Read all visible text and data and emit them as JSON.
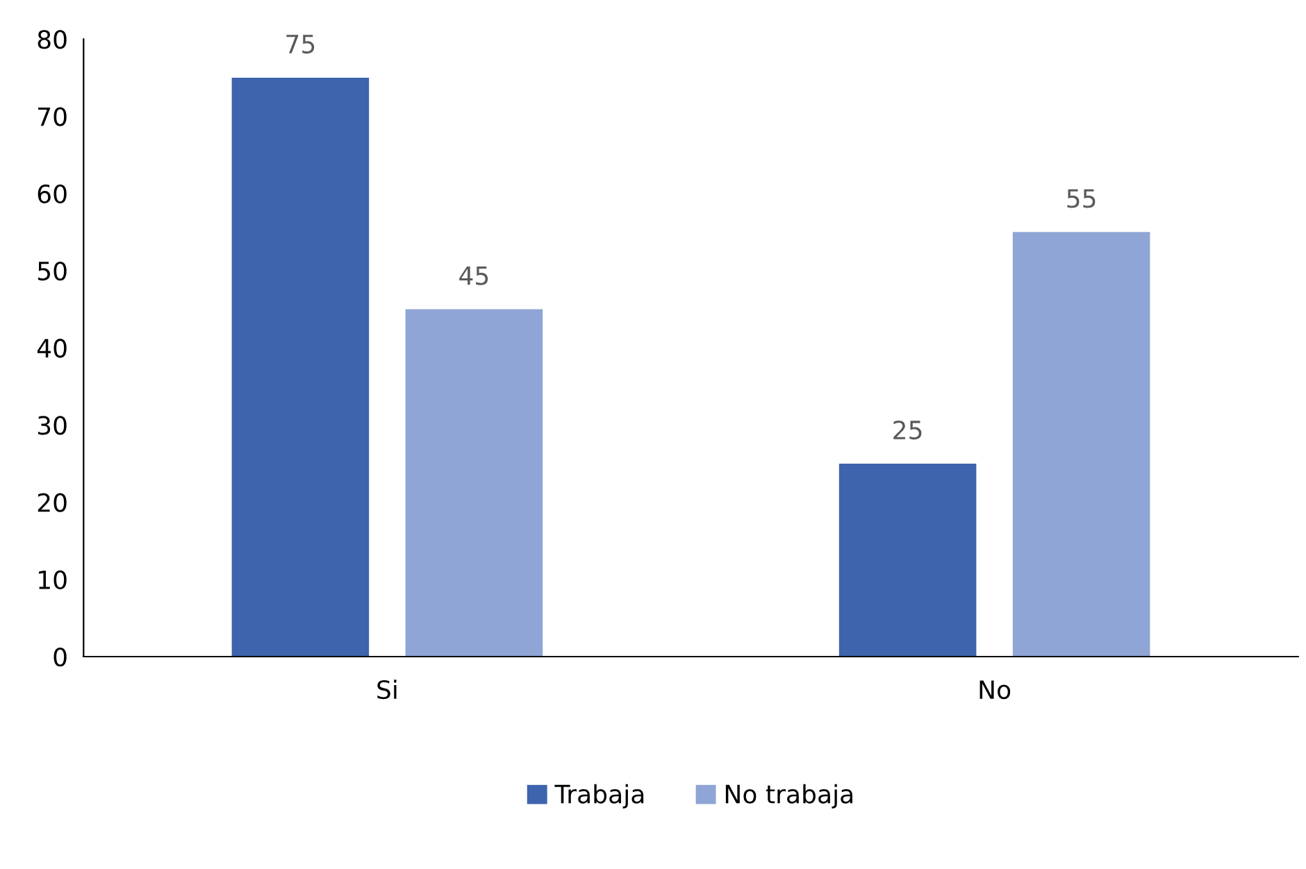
{
  "chart_data": {
    "type": "bar",
    "categories": [
      "Si",
      "No"
    ],
    "series": [
      {
        "name": "Trabaja",
        "color": "#3d64ac",
        "values": [
          75,
          25
        ]
      },
      {
        "name": "No trabaja",
        "color": "#8fa5d5",
        "values": [
          45,
          55
        ]
      }
    ],
    "ylim": [
      0,
      80
    ],
    "yticks": [
      0,
      10,
      20,
      30,
      40,
      50,
      60,
      70,
      80
    ],
    "data_labels": true,
    "grid": false,
    "legend": "bottom"
  }
}
